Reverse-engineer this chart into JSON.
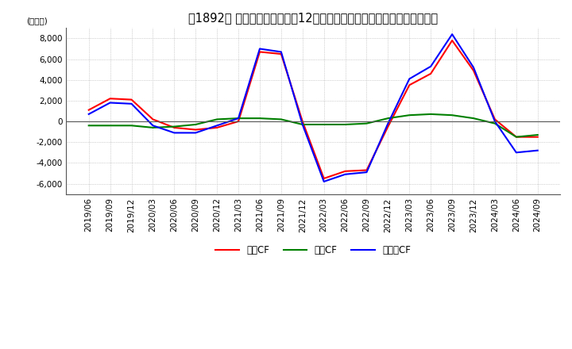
{
  "title": "　1892、 キャッシュフローの12か月移動合計の対前年同期増減額の推移",
  "title_bracket": "　1892、",
  "title_main": "キャッシュフローの12か月移動合計の対前年同期増減額の推移",
  "ylabel": "(百万円)",
  "ylim": [
    -7000,
    9000
  ],
  "yticks": [
    -6000,
    -4000,
    -2000,
    0,
    2000,
    4000,
    6000,
    8000
  ],
  "legend": [
    "営業CF",
    "投資CF",
    "フリーCF"
  ],
  "legend_colors": [
    "#ff0000",
    "#008000",
    "#0000ff"
  ],
  "dates": [
    "2019/06",
    "2019/09",
    "2019/12",
    "2020/03",
    "2020/06",
    "2020/09",
    "2020/12",
    "2021/03",
    "2021/06",
    "2021/09",
    "2021/12",
    "2022/03",
    "2022/06",
    "2022/09",
    "2022/12",
    "2023/03",
    "2023/06",
    "2023/09",
    "2023/12",
    "2024/03",
    "2024/06",
    "2024/09"
  ],
  "operating_cf": [
    1100,
    2200,
    2100,
    200,
    -600,
    -800,
    -600,
    0,
    6700,
    6500,
    0,
    -5500,
    -4800,
    -4700,
    -500,
    3500,
    4600,
    7800,
    4900,
    200,
    -1500,
    -1500
  ],
  "investing_cf": [
    -400,
    -400,
    -400,
    -600,
    -500,
    -300,
    200,
    300,
    300,
    200,
    -300,
    -300,
    -300,
    -200,
    300,
    600,
    700,
    600,
    300,
    -200,
    -1500,
    -1300
  ],
  "free_cf": [
    700,
    1800,
    1700,
    -400,
    -1100,
    -1100,
    -400,
    300,
    7000,
    6700,
    -300,
    -5800,
    -5100,
    -4900,
    -200,
    4100,
    5300,
    8400,
    5200,
    0,
    -3000,
    -2800
  ],
  "background_color": "#ffffff",
  "grid_color": "#aaaaaa",
  "title_fontsize": 10.5,
  "axis_fontsize": 7.5
}
